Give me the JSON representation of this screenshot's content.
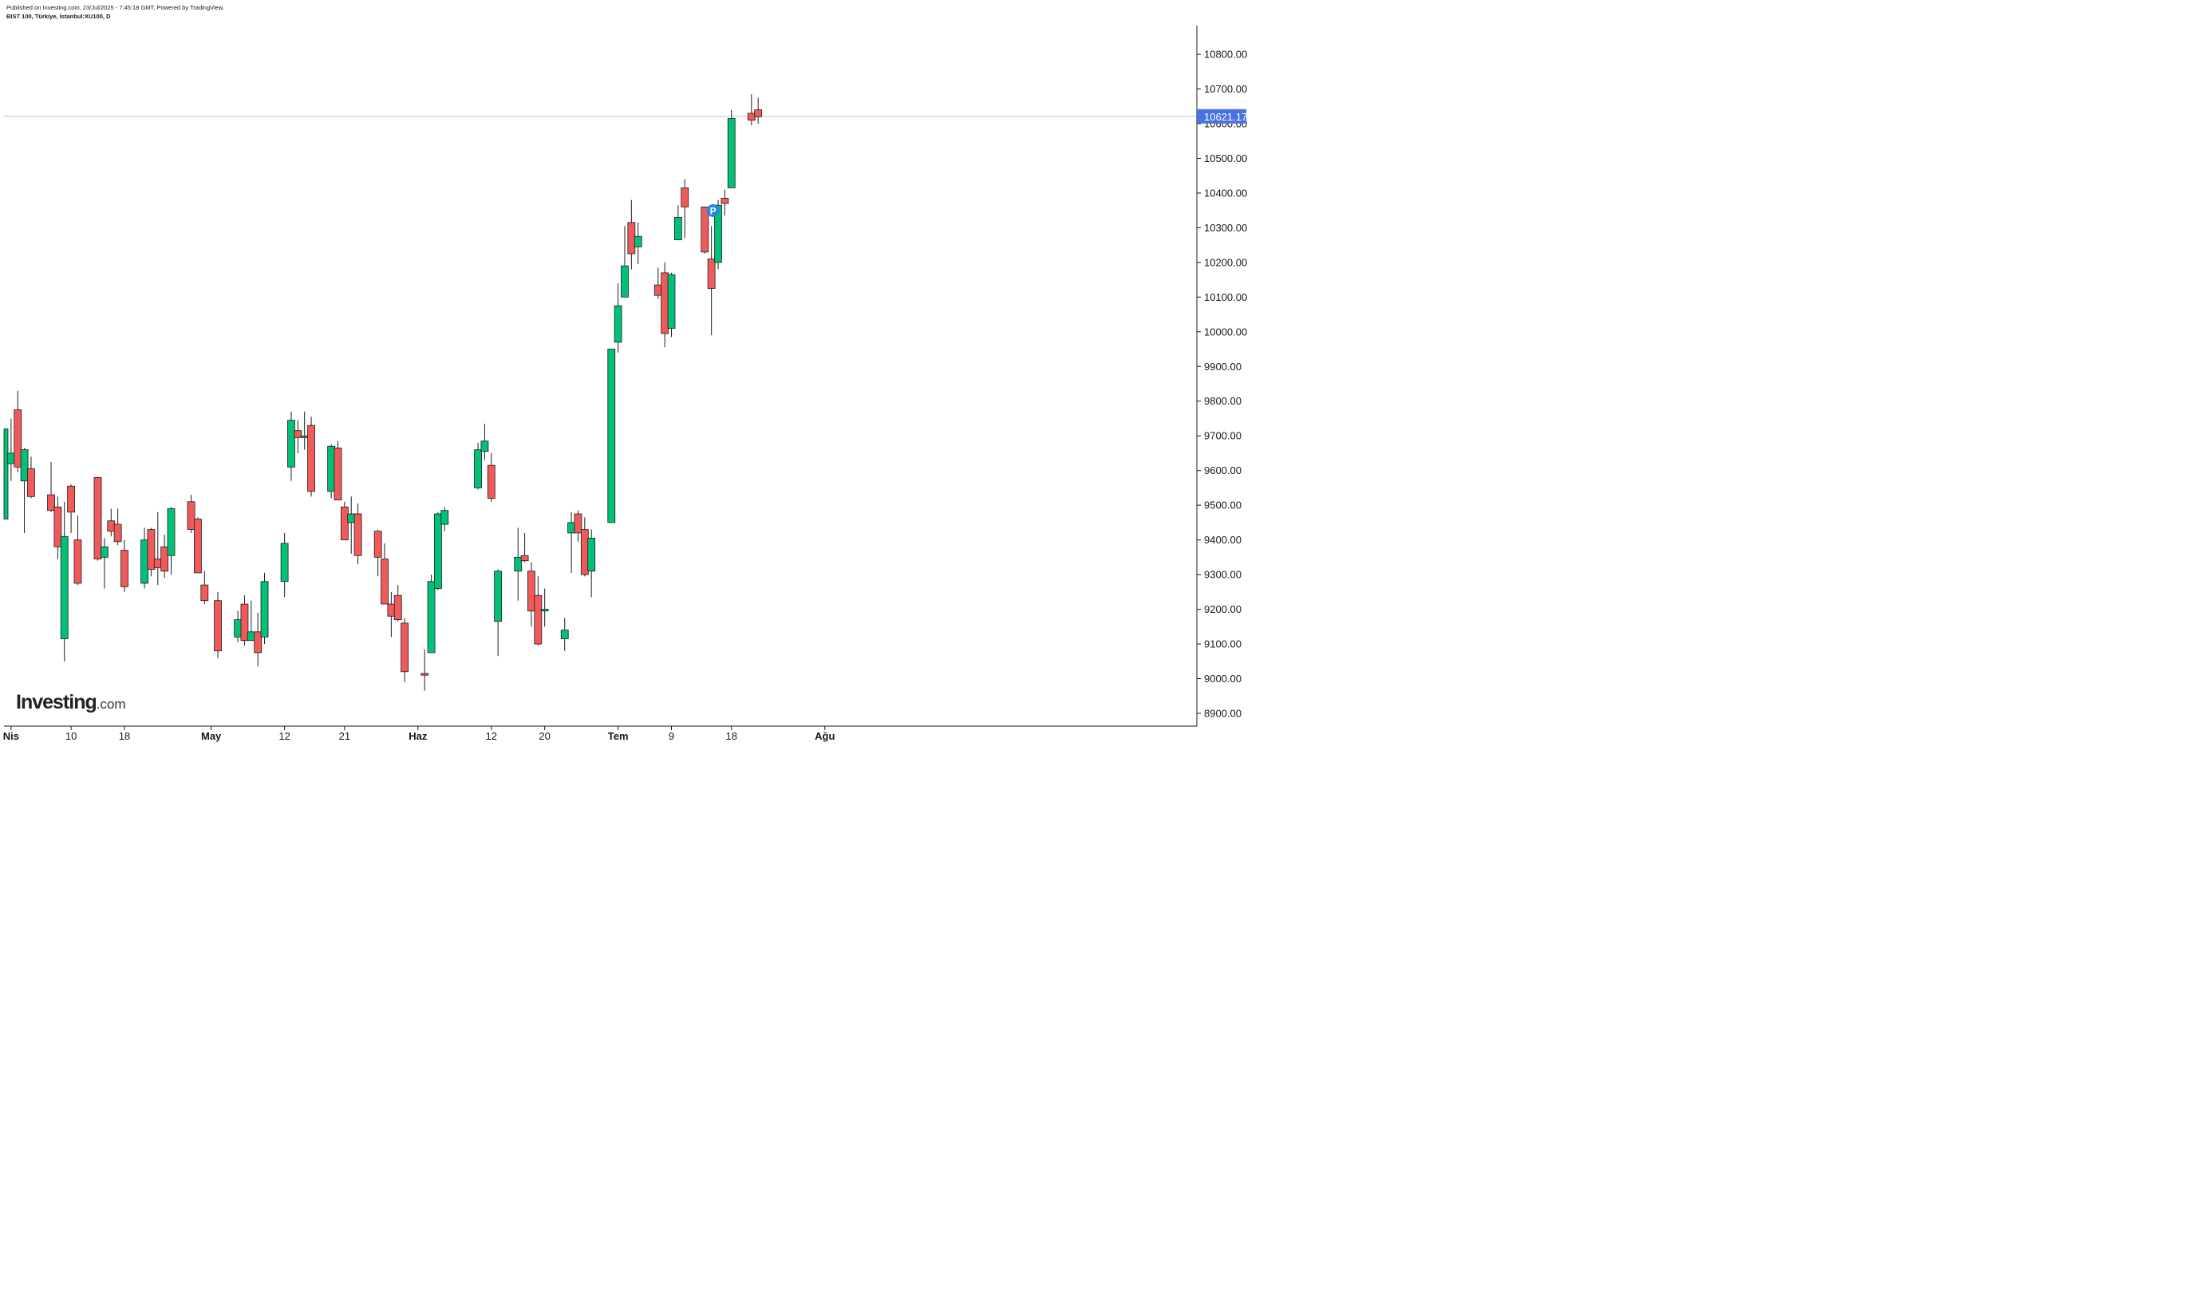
{
  "header": {
    "published": "Published on Investing.com, 23/Jul/2025 - 7:45:18 GMT, Powered by TradingView.",
    "symbol": "BIST 100, Türkiye, İstanbul:XU100, D"
  },
  "logo": {
    "main": "Investing",
    "suffix": ".com"
  },
  "colors": {
    "up": "#00c176",
    "down": "#f05a5a",
    "outline": "#1e1e1e",
    "price_line": "#b6c3e8",
    "price_badge": "#4a73e0"
  },
  "chart_data": {
    "type": "candlestick",
    "title": "",
    "y_axis": {
      "position": "right",
      "min": 8850,
      "max": 10880,
      "ticks": [
        8900,
        9000,
        9100,
        9200,
        9300,
        9400,
        9500,
        9600,
        9700,
        9800,
        9900,
        10000,
        10100,
        10200,
        10300,
        10400,
        10500,
        10600,
        10700,
        10800
      ],
      "tick_labels": [
        "8900.00",
        "9000.00",
        "9100.00",
        "9200.00",
        "9300.00",
        "9400.00",
        "9500.00",
        "9600.00",
        "9700.00",
        "9800.00",
        "9900.00",
        "10000.00",
        "10100.00",
        "10200.00",
        "10300.00",
        "10400.00",
        "10500.00",
        "10600.00",
        "10700.00",
        "10800.00"
      ]
    },
    "x_axis": {
      "labels": [
        {
          "text": "Nis",
          "date": "2025-04-01",
          "bold": true
        },
        {
          "text": "10",
          "date": "2025-04-10",
          "bold": false
        },
        {
          "text": "18",
          "date": "2025-04-18",
          "bold": false
        },
        {
          "text": "May",
          "date": "2025-05-01",
          "bold": true
        },
        {
          "text": "12",
          "date": "2025-05-12",
          "bold": false
        },
        {
          "text": "21",
          "date": "2025-05-21",
          "bold": false
        },
        {
          "text": "Haz",
          "date": "2025-06-01",
          "bold": true
        },
        {
          "text": "12",
          "date": "2025-06-12",
          "bold": false
        },
        {
          "text": "20",
          "date": "2025-06-20",
          "bold": false
        },
        {
          "text": "Tem",
          "date": "2025-07-01",
          "bold": true
        },
        {
          "text": "9",
          "date": "2025-07-09",
          "bold": false
        },
        {
          "text": "18",
          "date": "2025-07-18",
          "bold": false
        },
        {
          "text": "Ağu",
          "date": "2025-08-01",
          "bold": true
        }
      ]
    },
    "last_price": 10621.17,
    "last_price_label": "10621.17",
    "marker": {
      "text": "P",
      "date": "2025-07-15"
    },
    "candles": [
      {
        "date": "2025-03-31",
        "open": 9460,
        "high": 9720,
        "low": 9460,
        "close": 9720
      },
      {
        "date": "2025-04-01",
        "open": 9620,
        "high": 9750,
        "low": 9570,
        "close": 9650
      },
      {
        "date": "2025-04-02",
        "open": 9775,
        "high": 9830,
        "low": 9595,
        "close": 9610
      },
      {
        "date": "2025-04-03",
        "open": 9570,
        "high": 9665,
        "low": 9420,
        "close": 9660
      },
      {
        "date": "2025-04-04",
        "open": 9605,
        "high": 9640,
        "low": 9520,
        "close": 9525
      },
      {
        "date": "2025-04-07",
        "open": 9530,
        "high": 9625,
        "low": 9480,
        "close": 9485
      },
      {
        "date": "2025-04-08",
        "open": 9495,
        "high": 9525,
        "low": 9345,
        "close": 9380
      },
      {
        "date": "2025-04-09",
        "open": 9115,
        "high": 9510,
        "low": 9050,
        "close": 9410
      },
      {
        "date": "2025-04-10",
        "open": 9555,
        "high": 9560,
        "low": 9420,
        "close": 9480
      },
      {
        "date": "2025-04-11",
        "open": 9400,
        "high": 9470,
        "low": 9270,
        "close": 9275
      },
      {
        "date": "2025-04-14",
        "open": 9580,
        "high": 9580,
        "low": 9340,
        "close": 9345
      },
      {
        "date": "2025-04-15",
        "open": 9350,
        "high": 9405,
        "low": 9260,
        "close": 9380
      },
      {
        "date": "2025-04-16",
        "open": 9455,
        "high": 9490,
        "low": 9410,
        "close": 9425
      },
      {
        "date": "2025-04-17",
        "open": 9445,
        "high": 9490,
        "low": 9385,
        "close": 9395
      },
      {
        "date": "2025-04-18",
        "open": 9370,
        "high": 9400,
        "low": 9250,
        "close": 9265
      },
      {
        "date": "2025-04-21",
        "open": 9275,
        "high": 9435,
        "low": 9260,
        "close": 9400
      },
      {
        "date": "2025-04-22",
        "open": 9430,
        "high": 9435,
        "low": 9295,
        "close": 9315
      },
      {
        "date": "2025-04-23",
        "open": 9345,
        "high": 9480,
        "low": 9270,
        "close": 9320
      },
      {
        "date": "2025-04-24",
        "open": 9380,
        "high": 9415,
        "low": 9290,
        "close": 9310
      },
      {
        "date": "2025-04-25",
        "open": 9355,
        "high": 9495,
        "low": 9300,
        "close": 9490
      },
      {
        "date": "2025-04-28",
        "open": 9510,
        "high": 9530,
        "low": 9420,
        "close": 9430
      },
      {
        "date": "2025-04-29",
        "open": 9460,
        "high": 9465,
        "low": 9305,
        "close": 9305
      },
      {
        "date": "2025-04-30",
        "open": 9270,
        "high": 9310,
        "low": 9215,
        "close": 9225
      },
      {
        "date": "2025-05-02",
        "open": 9225,
        "high": 9250,
        "low": 9060,
        "close": 9080
      },
      {
        "date": "2025-05-05",
        "open": 9120,
        "high": 9195,
        "low": 9105,
        "close": 9170
      },
      {
        "date": "2025-05-06",
        "open": 9215,
        "high": 9240,
        "low": 9095,
        "close": 9110
      },
      {
        "date": "2025-05-07",
        "open": 9110,
        "high": 9225,
        "low": 9110,
        "close": 9135
      },
      {
        "date": "2025-05-08",
        "open": 9135,
        "high": 9190,
        "low": 9035,
        "close": 9075
      },
      {
        "date": "2025-05-09",
        "open": 9120,
        "high": 9305,
        "low": 9100,
        "close": 9280
      },
      {
        "date": "2025-05-12",
        "open": 9280,
        "high": 9420,
        "low": 9235,
        "close": 9390
      },
      {
        "date": "2025-05-13",
        "open": 9610,
        "high": 9770,
        "low": 9570,
        "close": 9745
      },
      {
        "date": "2025-05-14",
        "open": 9715,
        "high": 9745,
        "low": 9650,
        "close": 9695
      },
      {
        "date": "2025-05-15",
        "open": 9695,
        "high": 9770,
        "low": 9660,
        "close": 9700
      },
      {
        "date": "2025-05-16",
        "open": 9730,
        "high": 9755,
        "low": 9525,
        "close": 9540
      },
      {
        "date": "2025-05-19",
        "open": 9540,
        "high": 9675,
        "low": 9520,
        "close": 9670
      },
      {
        "date": "2025-05-20",
        "open": 9665,
        "high": 9685,
        "low": 9515,
        "close": 9515
      },
      {
        "date": "2025-05-21",
        "open": 9495,
        "high": 9510,
        "low": 9400,
        "close": 9400
      },
      {
        "date": "2025-05-22",
        "open": 9450,
        "high": 9525,
        "low": 9360,
        "close": 9475
      },
      {
        "date": "2025-05-23",
        "open": 9475,
        "high": 9505,
        "low": 9330,
        "close": 9355
      },
      {
        "date": "2025-05-26",
        "open": 9425,
        "high": 9430,
        "low": 9295,
        "close": 9350
      },
      {
        "date": "2025-05-27",
        "open": 9345,
        "high": 9390,
        "low": 9215,
        "close": 9215
      },
      {
        "date": "2025-05-28",
        "open": 9215,
        "high": 9250,
        "low": 9120,
        "close": 9180
      },
      {
        "date": "2025-05-29",
        "open": 9240,
        "high": 9270,
        "low": 9165,
        "close": 9170
      },
      {
        "date": "2025-05-30",
        "open": 9160,
        "high": 9175,
        "low": 8990,
        "close": 9020
      },
      {
        "date": "2025-06-02",
        "open": 9015,
        "high": 9085,
        "low": 8965,
        "close": 9010
      },
      {
        "date": "2025-06-03",
        "open": 9075,
        "high": 9300,
        "low": 9075,
        "close": 9280
      },
      {
        "date": "2025-06-04",
        "open": 9260,
        "high": 9480,
        "low": 9255,
        "close": 9475
      },
      {
        "date": "2025-06-05",
        "open": 9445,
        "high": 9495,
        "low": 9425,
        "close": 9485
      },
      {
        "date": "2025-06-10",
        "open": 9550,
        "high": 9680,
        "low": 9545,
        "close": 9660
      },
      {
        "date": "2025-06-11",
        "open": 9655,
        "high": 9735,
        "low": 9630,
        "close": 9685
      },
      {
        "date": "2025-06-12",
        "open": 9615,
        "high": 9650,
        "low": 9510,
        "close": 9520
      },
      {
        "date": "2025-06-13",
        "open": 9165,
        "high": 9315,
        "low": 9065,
        "close": 9310
      },
      {
        "date": "2025-06-16",
        "open": 9310,
        "high": 9435,
        "low": 9225,
        "close": 9350
      },
      {
        "date": "2025-06-17",
        "open": 9355,
        "high": 9420,
        "low": 9335,
        "close": 9340
      },
      {
        "date": "2025-06-18",
        "open": 9310,
        "high": 9335,
        "low": 9150,
        "close": 9195
      },
      {
        "date": "2025-06-19",
        "open": 9240,
        "high": 9295,
        "low": 9095,
        "close": 9100
      },
      {
        "date": "2025-06-20",
        "open": 9195,
        "high": 9260,
        "low": 9150,
        "close": 9200
      },
      {
        "date": "2025-06-23",
        "open": 9115,
        "high": 9175,
        "low": 9080,
        "close": 9140
      },
      {
        "date": "2025-06-24",
        "open": 9420,
        "high": 9480,
        "low": 9305,
        "close": 9450
      },
      {
        "date": "2025-06-25",
        "open": 9475,
        "high": 9485,
        "low": 9395,
        "close": 9420
      },
      {
        "date": "2025-06-26",
        "open": 9430,
        "high": 9465,
        "low": 9295,
        "close": 9300
      },
      {
        "date": "2025-06-27",
        "open": 9310,
        "high": 9430,
        "low": 9235,
        "close": 9405
      },
      {
        "date": "2025-06-30",
        "open": 9450,
        "high": 9950,
        "low": 9450,
        "close": 9950
      },
      {
        "date": "2025-07-01",
        "open": 9970,
        "high": 10140,
        "low": 9940,
        "close": 10075
      },
      {
        "date": "2025-07-02",
        "open": 10100,
        "high": 10305,
        "low": 10100,
        "close": 10190
      },
      {
        "date": "2025-07-03",
        "open": 10315,
        "high": 10380,
        "low": 10180,
        "close": 10225
      },
      {
        "date": "2025-07-04",
        "open": 10245,
        "high": 10315,
        "low": 10195,
        "close": 10275
      },
      {
        "date": "2025-07-07",
        "open": 10135,
        "high": 10185,
        "low": 10095,
        "close": 10105
      },
      {
        "date": "2025-07-08",
        "open": 10170,
        "high": 10200,
        "low": 9955,
        "close": 9995
      },
      {
        "date": "2025-07-09",
        "open": 10010,
        "high": 10170,
        "low": 9985,
        "close": 10165
      },
      {
        "date": "2025-07-10",
        "open": 10265,
        "high": 10365,
        "low": 10265,
        "close": 10330
      },
      {
        "date": "2025-07-11",
        "open": 10415,
        "high": 10440,
        "low": 10270,
        "close": 10360
      },
      {
        "date": "2025-07-14",
        "open": 10360,
        "high": 10360,
        "low": 10225,
        "close": 10230
      },
      {
        "date": "2025-07-15",
        "open": 10210,
        "high": 10305,
        "low": 9990,
        "close": 10125
      },
      {
        "date": "2025-07-16",
        "open": 10200,
        "high": 10380,
        "low": 10180,
        "close": 10365
      },
      {
        "date": "2025-07-17",
        "open": 10385,
        "high": 10410,
        "low": 10335,
        "close": 10370
      },
      {
        "date": "2025-07-18",
        "open": 10415,
        "high": 10640,
        "low": 10415,
        "close": 10615
      },
      {
        "date": "2025-07-21",
        "open": 10630,
        "high": 10685,
        "low": 10595,
        "close": 10610
      },
      {
        "date": "2025-07-22",
        "open": 10640,
        "high": 10675,
        "low": 10600,
        "close": 10620
      }
    ]
  }
}
